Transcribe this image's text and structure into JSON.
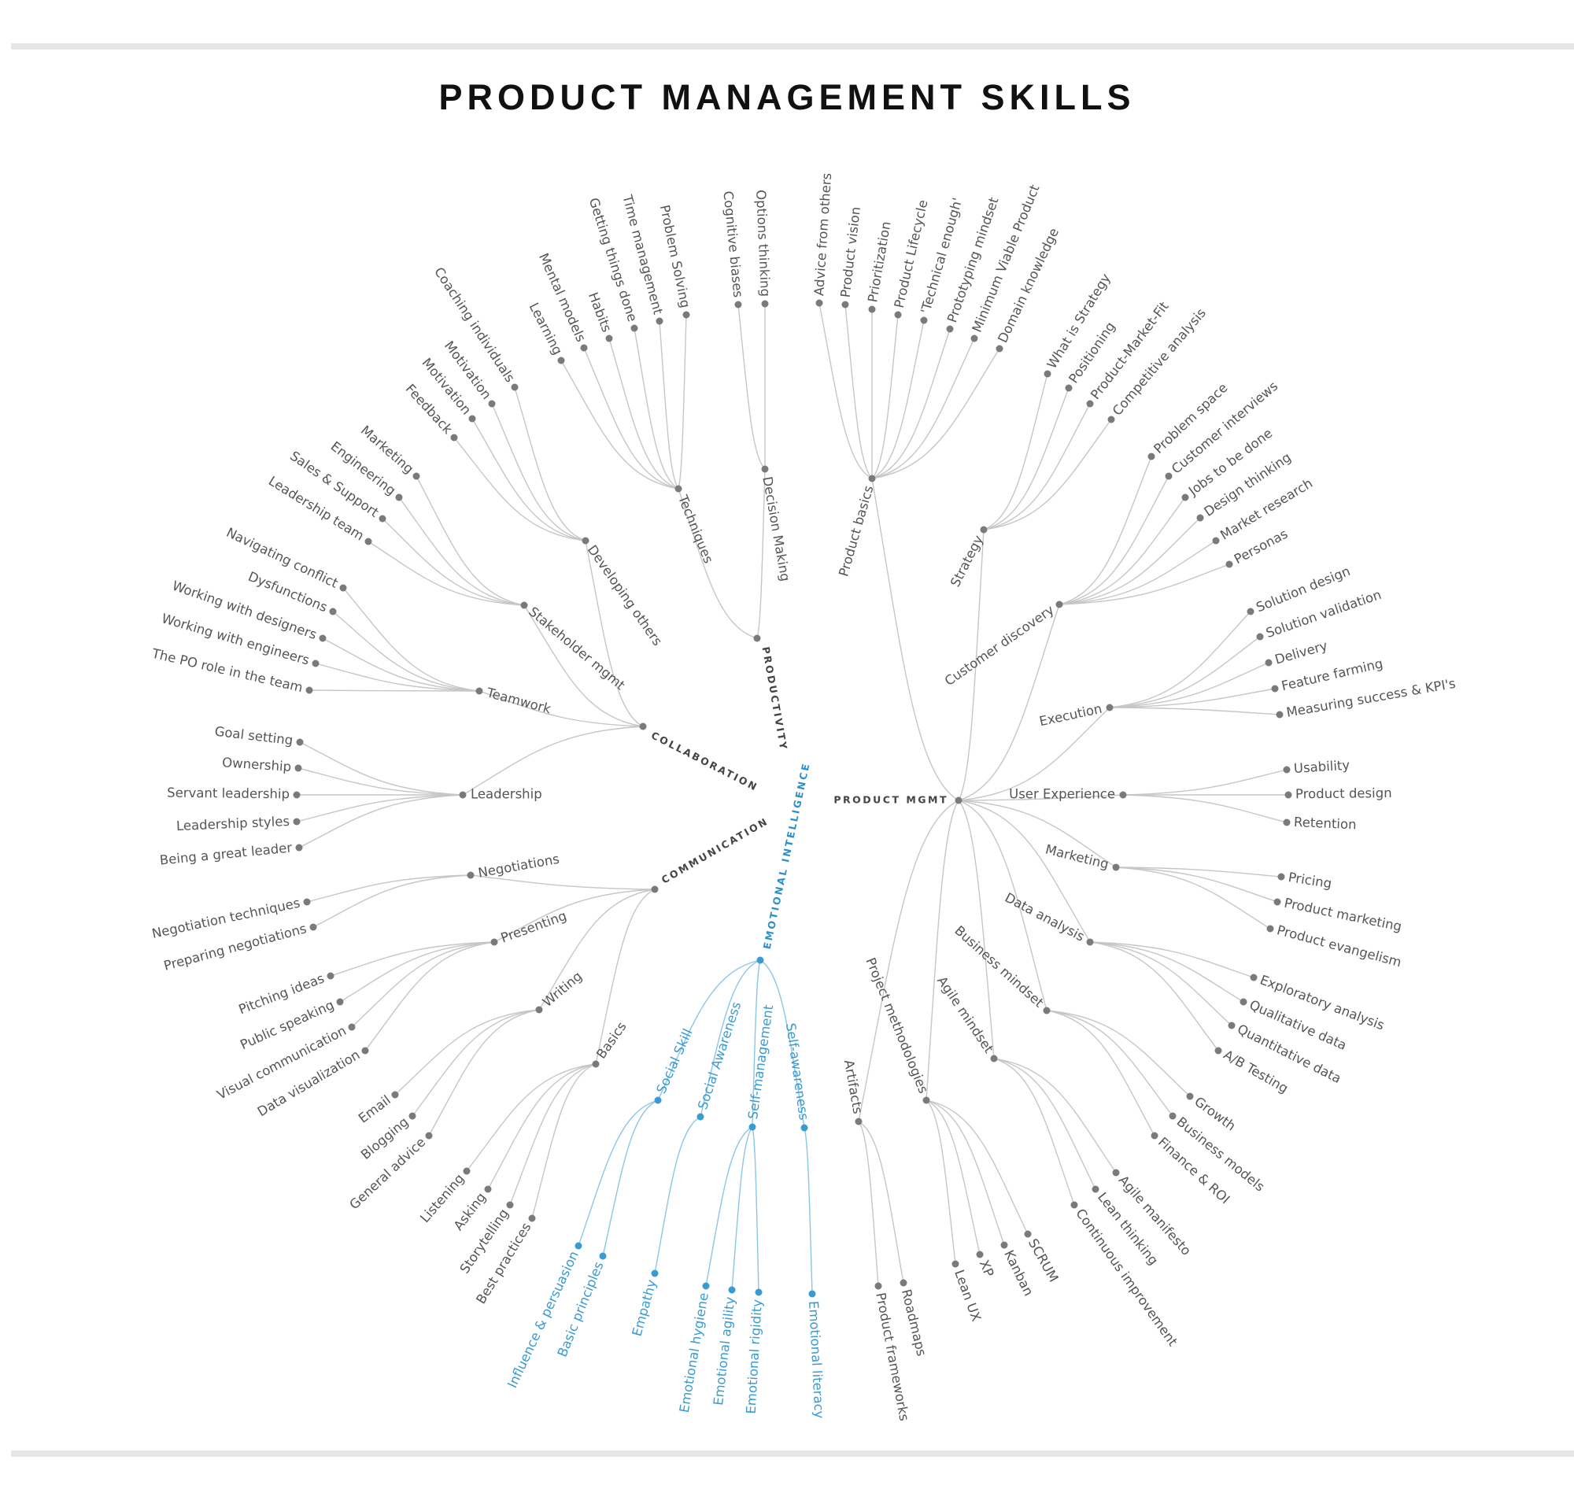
{
  "header": {
    "title": "PRODUCT MANAGEMENT SKILLS"
  },
  "colors": {
    "gray_node": "#7a7a7a",
    "gray_link": "#c6c6c6",
    "gray_text": "#555555",
    "blue_accent": "#3a9bd1"
  },
  "diagram": {
    "product_mgmt": {
      "label": "PRODUCT MGMT",
      "groups": [
        {
          "label": "Product basics",
          "items": [
            "Advice from others",
            "Product vision",
            "Prioritization",
            "Product Lifecycle",
            "'Technical enough'",
            "Prototyping mindset",
            "Minimum Viable Product",
            "Domain knowledge"
          ]
        },
        {
          "label": "Strategy",
          "items": [
            "What is Strategy",
            "Positioning",
            "Product-Market-Fit",
            "Competitive analysis"
          ]
        },
        {
          "label": "Customer discovery",
          "items": [
            "Problem space",
            "Customer interviews",
            "Jobs to be done",
            "Design thinking",
            "Market research",
            "Personas"
          ]
        },
        {
          "label": "Execution",
          "items": [
            "Solution design",
            "Solution validation",
            "Delivery",
            "Feature farming",
            "Measuring success & KPI's"
          ]
        },
        {
          "label": "User Experience",
          "items": [
            "Usability",
            "Product design",
            "Retention"
          ]
        },
        {
          "label": "Marketing",
          "items": [
            "Pricing",
            "Product marketing",
            "Product evangelism"
          ]
        },
        {
          "label": "Data analysis",
          "items": [
            "Exploratory analysis",
            "Qualitative data",
            "Quantitative data",
            "A/B Testing"
          ]
        },
        {
          "label": "Business mindset",
          "items": [
            "Growth",
            "Business models",
            "Finance & ROI"
          ]
        },
        {
          "label": "Agile mindset",
          "items": [
            "Agile manifesto",
            "Lean thinking",
            "Continuous improvement"
          ]
        },
        {
          "label": "Project methodologies",
          "items": [
            "SCRUM",
            "Kanban",
            "XP",
            "Lean UX"
          ]
        },
        {
          "label": "Artifacts",
          "items": [
            "Roadmaps",
            "Product frameworks"
          ]
        }
      ]
    },
    "productivity": {
      "label": "PRODUCTIVITY",
      "groups": [
        {
          "label": "Techniques",
          "items": [
            "Learning",
            "Mental models",
            "Habits",
            "Getting things done",
            "Time management",
            "Problem Solving"
          ]
        },
        {
          "label": "Decision Making",
          "items": [
            "Cognitive biases",
            "Options thinking"
          ]
        }
      ]
    },
    "collaboration": {
      "label": "COLLABORATION",
      "groups": [
        {
          "label": "Developing others",
          "items": [
            "Coaching individuals",
            "Motivation",
            "Motivation",
            "Feedback"
          ]
        },
        {
          "label": "Stakeholder mgmt",
          "items": [
            "Marketing",
            "Engineering",
            "Sales & Support",
            "Leadership team"
          ]
        },
        {
          "label": "Teamwork",
          "items": [
            "Navigating conflict",
            "Dysfunctions",
            "Working with designers",
            "Working with engineers",
            "The PO role in the team"
          ]
        },
        {
          "label": "Leadership",
          "items": [
            "Goal setting",
            "Ownership",
            "Servant leadership",
            "Leadership styles",
            "Being a great leader"
          ]
        }
      ]
    },
    "communication": {
      "label": "COMMUNICATION",
      "groups": [
        {
          "label": "Negotiations",
          "items": [
            "Negotiation techniques",
            "Preparing negotiations"
          ]
        },
        {
          "label": "Presenting",
          "items": [
            "Pitching ideas",
            "Public speaking",
            "Visual communication",
            "Data visualization"
          ]
        },
        {
          "label": "Writing",
          "items": [
            "Email",
            "Blogging",
            "General advice"
          ]
        },
        {
          "label": "Basics",
          "items": [
            "Listening",
            "Asking",
            "Storytelling",
            "Best practices"
          ]
        }
      ]
    },
    "emotional_intelligence": {
      "label": "EMOTIONAL INTELLIGENCE",
      "groups": [
        {
          "label": "Social Skill",
          "items": [
            "Influence & persuasion",
            "Basic principles"
          ]
        },
        {
          "label": "Social Awareness",
          "items": [
            "Empathy"
          ]
        },
        {
          "label": "Self-management",
          "items": [
            "Emotional hygiene",
            "Emotional agility",
            "Emotional rigidity"
          ]
        },
        {
          "label": "Self-awareness",
          "items": [
            "Emotional literacy"
          ]
        }
      ]
    }
  }
}
